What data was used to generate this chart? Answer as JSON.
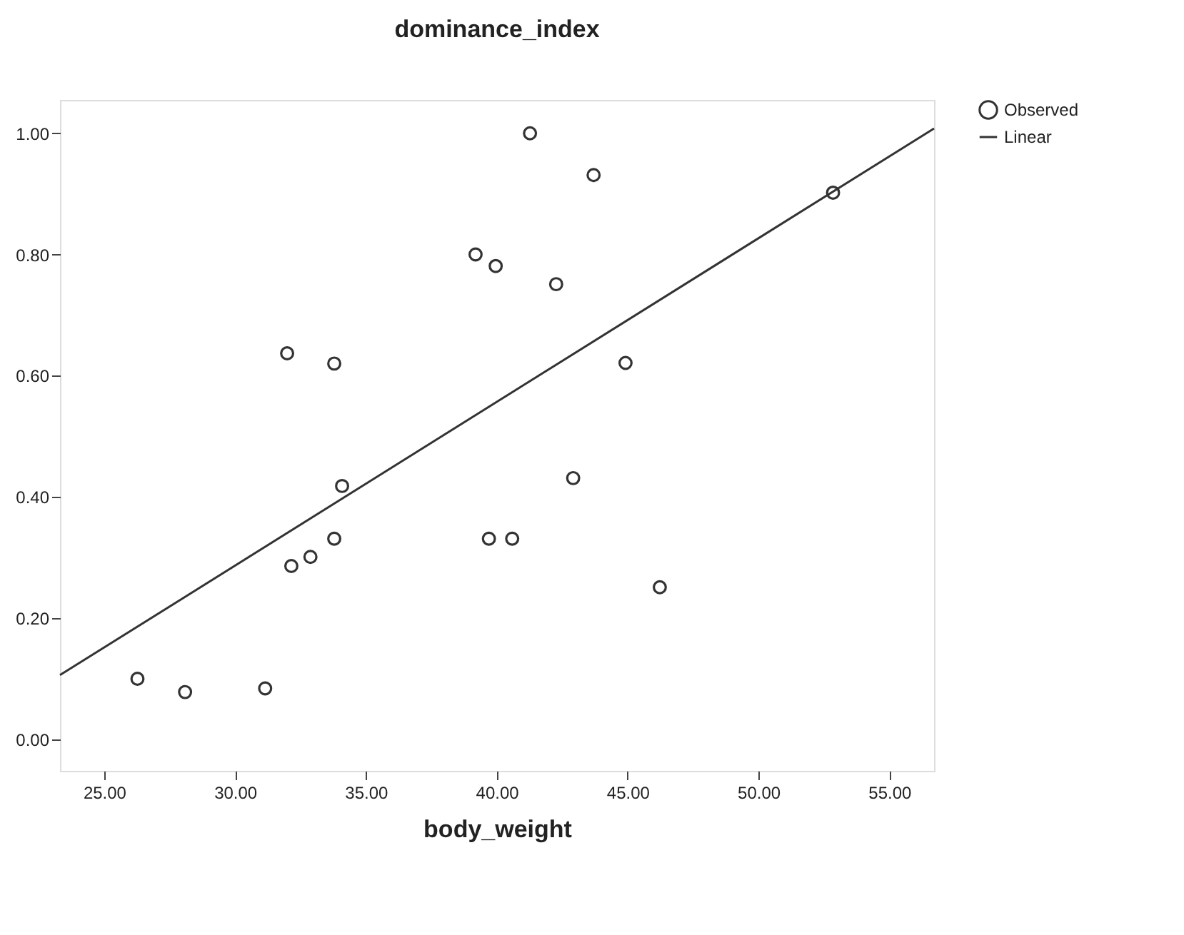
{
  "chart_data": {
    "type": "scatter",
    "title": "dominance_index",
    "xlabel": "body_weight",
    "xlim": [
      23.31,
      56.71
    ],
    "ylim": [
      -0.052,
      1.055
    ],
    "xticks": [
      {
        "value": 25,
        "label": "25.00"
      },
      {
        "value": 30,
        "label": "30.00"
      },
      {
        "value": 35,
        "label": "35.00"
      },
      {
        "value": 40,
        "label": "40.00"
      },
      {
        "value": 45,
        "label": "45.00"
      },
      {
        "value": 50,
        "label": "50.00"
      },
      {
        "value": 55,
        "label": "55.00"
      }
    ],
    "yticks": [
      {
        "value": 0,
        "label": "0.00"
      },
      {
        "value": 0.2,
        "label": "0.20"
      },
      {
        "value": 0.4,
        "label": "0.40"
      },
      {
        "value": 0.6,
        "label": "0.60"
      },
      {
        "value": 0.8,
        "label": "0.80"
      },
      {
        "value": 1,
        "label": "1.00"
      }
    ],
    "legend": "top right",
    "series": [
      {
        "name": "Observed",
        "type": "scatter",
        "marker": "circle",
        "color": "#333333",
        "x": [
          26.27,
          28.09,
          31.15,
          31.99,
          32.15,
          32.88,
          33.79,
          33.79,
          34.09,
          39.19,
          39.7,
          39.96,
          40.59,
          41.27,
          42.27,
          42.92,
          43.7,
          44.92,
          46.23,
          52.85
        ],
        "values": [
          0.1,
          0.078,
          0.084,
          0.637,
          0.286,
          0.301,
          0.62,
          0.331,
          0.418,
          0.8,
          0.331,
          0.781,
          0.331,
          1.0,
          0.751,
          0.431,
          0.931,
          0.621,
          0.251,
          0.902
        ]
      },
      {
        "name": "Linear",
        "type": "line",
        "line_style": "solid",
        "color": "#333333",
        "x": [
          23.31,
          56.71
        ],
        "values": [
          0.106,
          1.008
        ]
      }
    ]
  }
}
